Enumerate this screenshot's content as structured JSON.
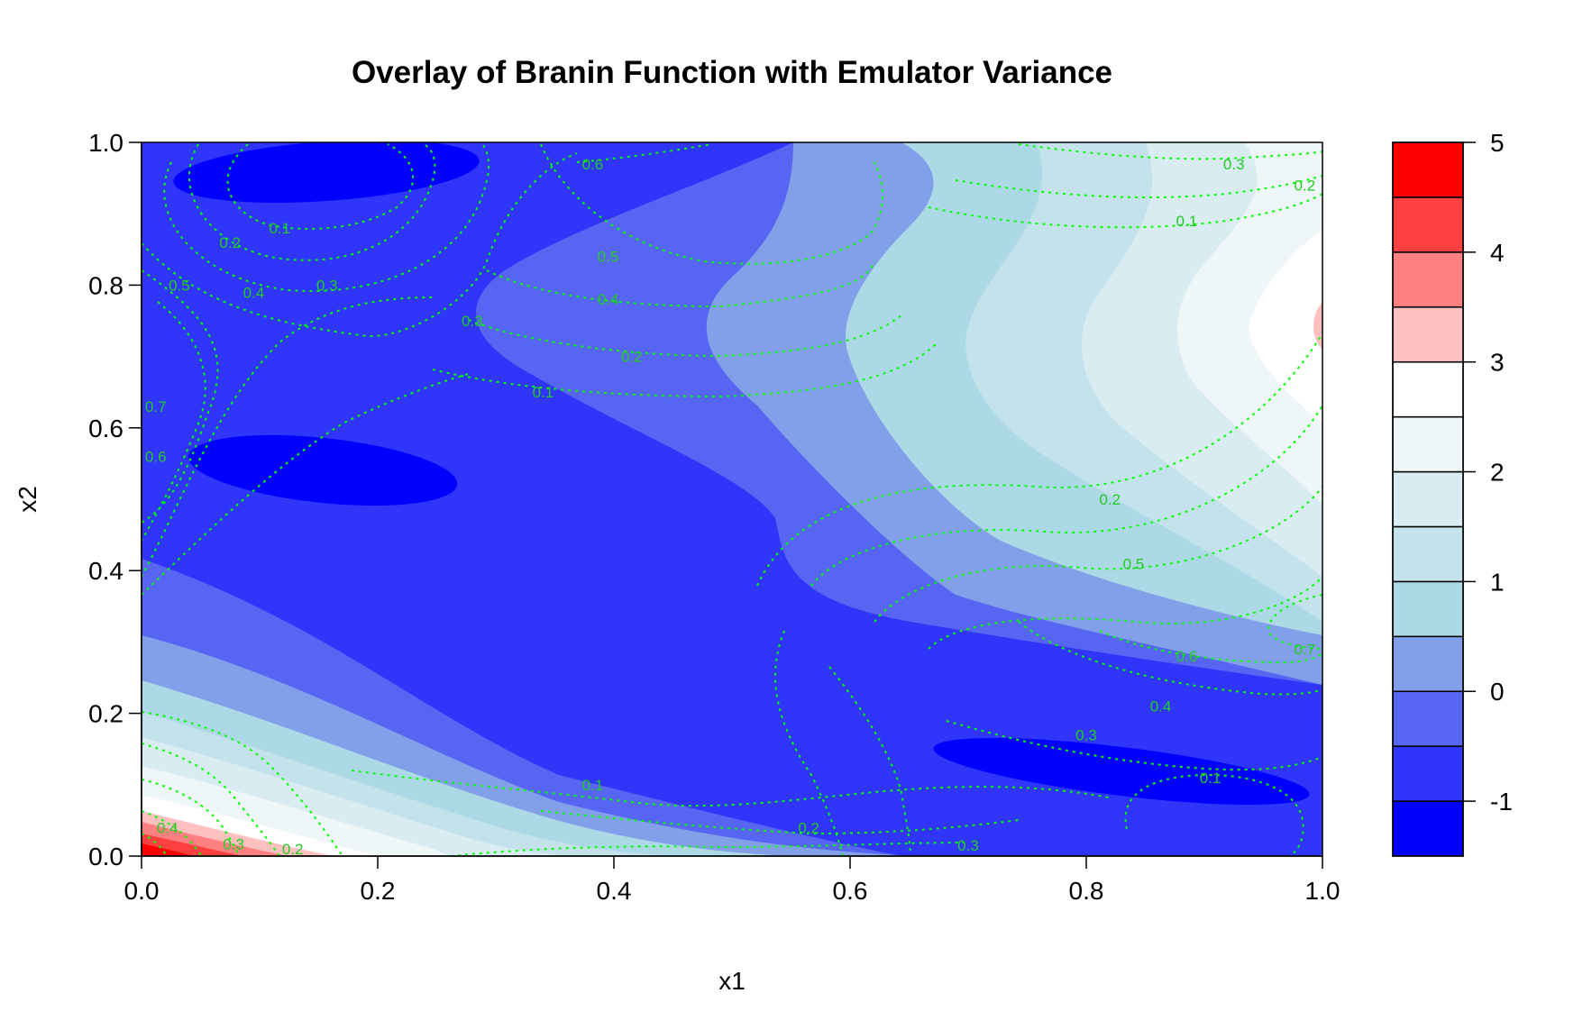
{
  "chart_data": {
    "type": "heatmap",
    "title": "Overlay of Branin Function with Emulator Variance",
    "xlabel": "x1",
    "ylabel": "x2",
    "xlim": [
      0,
      1
    ],
    "ylim": [
      0,
      1
    ],
    "x_ticks": [
      "0.0",
      "0.2",
      "0.4",
      "0.6",
      "0.8",
      "1.0"
    ],
    "y_ticks": [
      "0.0",
      "0.2",
      "0.4",
      "0.6",
      "0.8",
      "1.0"
    ],
    "filled_contour": {
      "variable": "Branin function (scaled)",
      "levels": [
        -1.5,
        -1,
        -0.5,
        0,
        0.5,
        1,
        1.5,
        2,
        2.5,
        3,
        3.5,
        4,
        4.5,
        5
      ],
      "colors": [
        "#0000ff",
        "#2f36fa",
        "#5666f2",
        "#82a0ea",
        "#add8e6",
        "#c3e2ec",
        "#d9ecf2",
        "#eef6f8",
        "#ffffff",
        "#ffc0c0",
        "#ff8080",
        "#ff4040",
        "#ff0000"
      ],
      "legend_ticks": [
        "-1",
        "0",
        "1",
        "2",
        "3",
        "4",
        "5"
      ],
      "legend_tick_values": [
        -1,
        0,
        1,
        2,
        3,
        4,
        5
      ]
    },
    "contour_overlay": {
      "variable": "Emulator variance",
      "color": "#00ff00",
      "style": "dotted",
      "levels": [
        0.1,
        0.2,
        0.3,
        0.4,
        0.5,
        0.6,
        0.7
      ],
      "labels": [
        {
          "text": "0.1",
          "x": 0.117,
          "y": 0.88
        },
        {
          "text": "0.2",
          "x": 0.075,
          "y": 0.86
        },
        {
          "text": "0.3",
          "x": 0.157,
          "y": 0.8
        },
        {
          "text": "0.4",
          "x": 0.095,
          "y": 0.79
        },
        {
          "text": "0.5",
          "x": 0.032,
          "y": 0.8
        },
        {
          "text": "0.6",
          "x": 0.382,
          "y": 0.97
        },
        {
          "text": "0.5",
          "x": 0.395,
          "y": 0.84
        },
        {
          "text": "0.4",
          "x": 0.395,
          "y": 0.78
        },
        {
          "text": "0.3",
          "x": 0.28,
          "y": 0.75
        },
        {
          "text": "0.2",
          "x": 0.415,
          "y": 0.7
        },
        {
          "text": "0.1",
          "x": 0.34,
          "y": 0.65
        },
        {
          "text": "0.7",
          "x": 0.012,
          "y": 0.63
        },
        {
          "text": "0.6",
          "x": 0.012,
          "y": 0.56
        },
        {
          "text": "0.3",
          "x": 0.925,
          "y": 0.97
        },
        {
          "text": "0.2",
          "x": 0.985,
          "y": 0.94
        },
        {
          "text": "0.1",
          "x": 0.885,
          "y": 0.89
        },
        {
          "text": "0.2",
          "x": 0.82,
          "y": 0.5
        },
        {
          "text": "0.5",
          "x": 0.84,
          "y": 0.41
        },
        {
          "text": "0.6",
          "x": 0.885,
          "y": 0.28
        },
        {
          "text": "0.7",
          "x": 0.985,
          "y": 0.29
        },
        {
          "text": "0.4",
          "x": 0.863,
          "y": 0.21
        },
        {
          "text": "0.3",
          "x": 0.8,
          "y": 0.17
        },
        {
          "text": "0.1",
          "x": 0.905,
          "y": 0.11
        },
        {
          "text": "0.1",
          "x": 0.382,
          "y": 0.1
        },
        {
          "text": "0.2",
          "x": 0.565,
          "y": 0.04
        },
        {
          "text": "0.3",
          "x": 0.7,
          "y": 0.015
        },
        {
          "text": "0.4",
          "x": 0.022,
          "y": 0.04
        },
        {
          "text": "0.3",
          "x": 0.078,
          "y": 0.017
        },
        {
          "text": "0.2",
          "x": 0.128,
          "y": 0.01
        }
      ]
    },
    "grid": false,
    "legend_placement": "right"
  }
}
